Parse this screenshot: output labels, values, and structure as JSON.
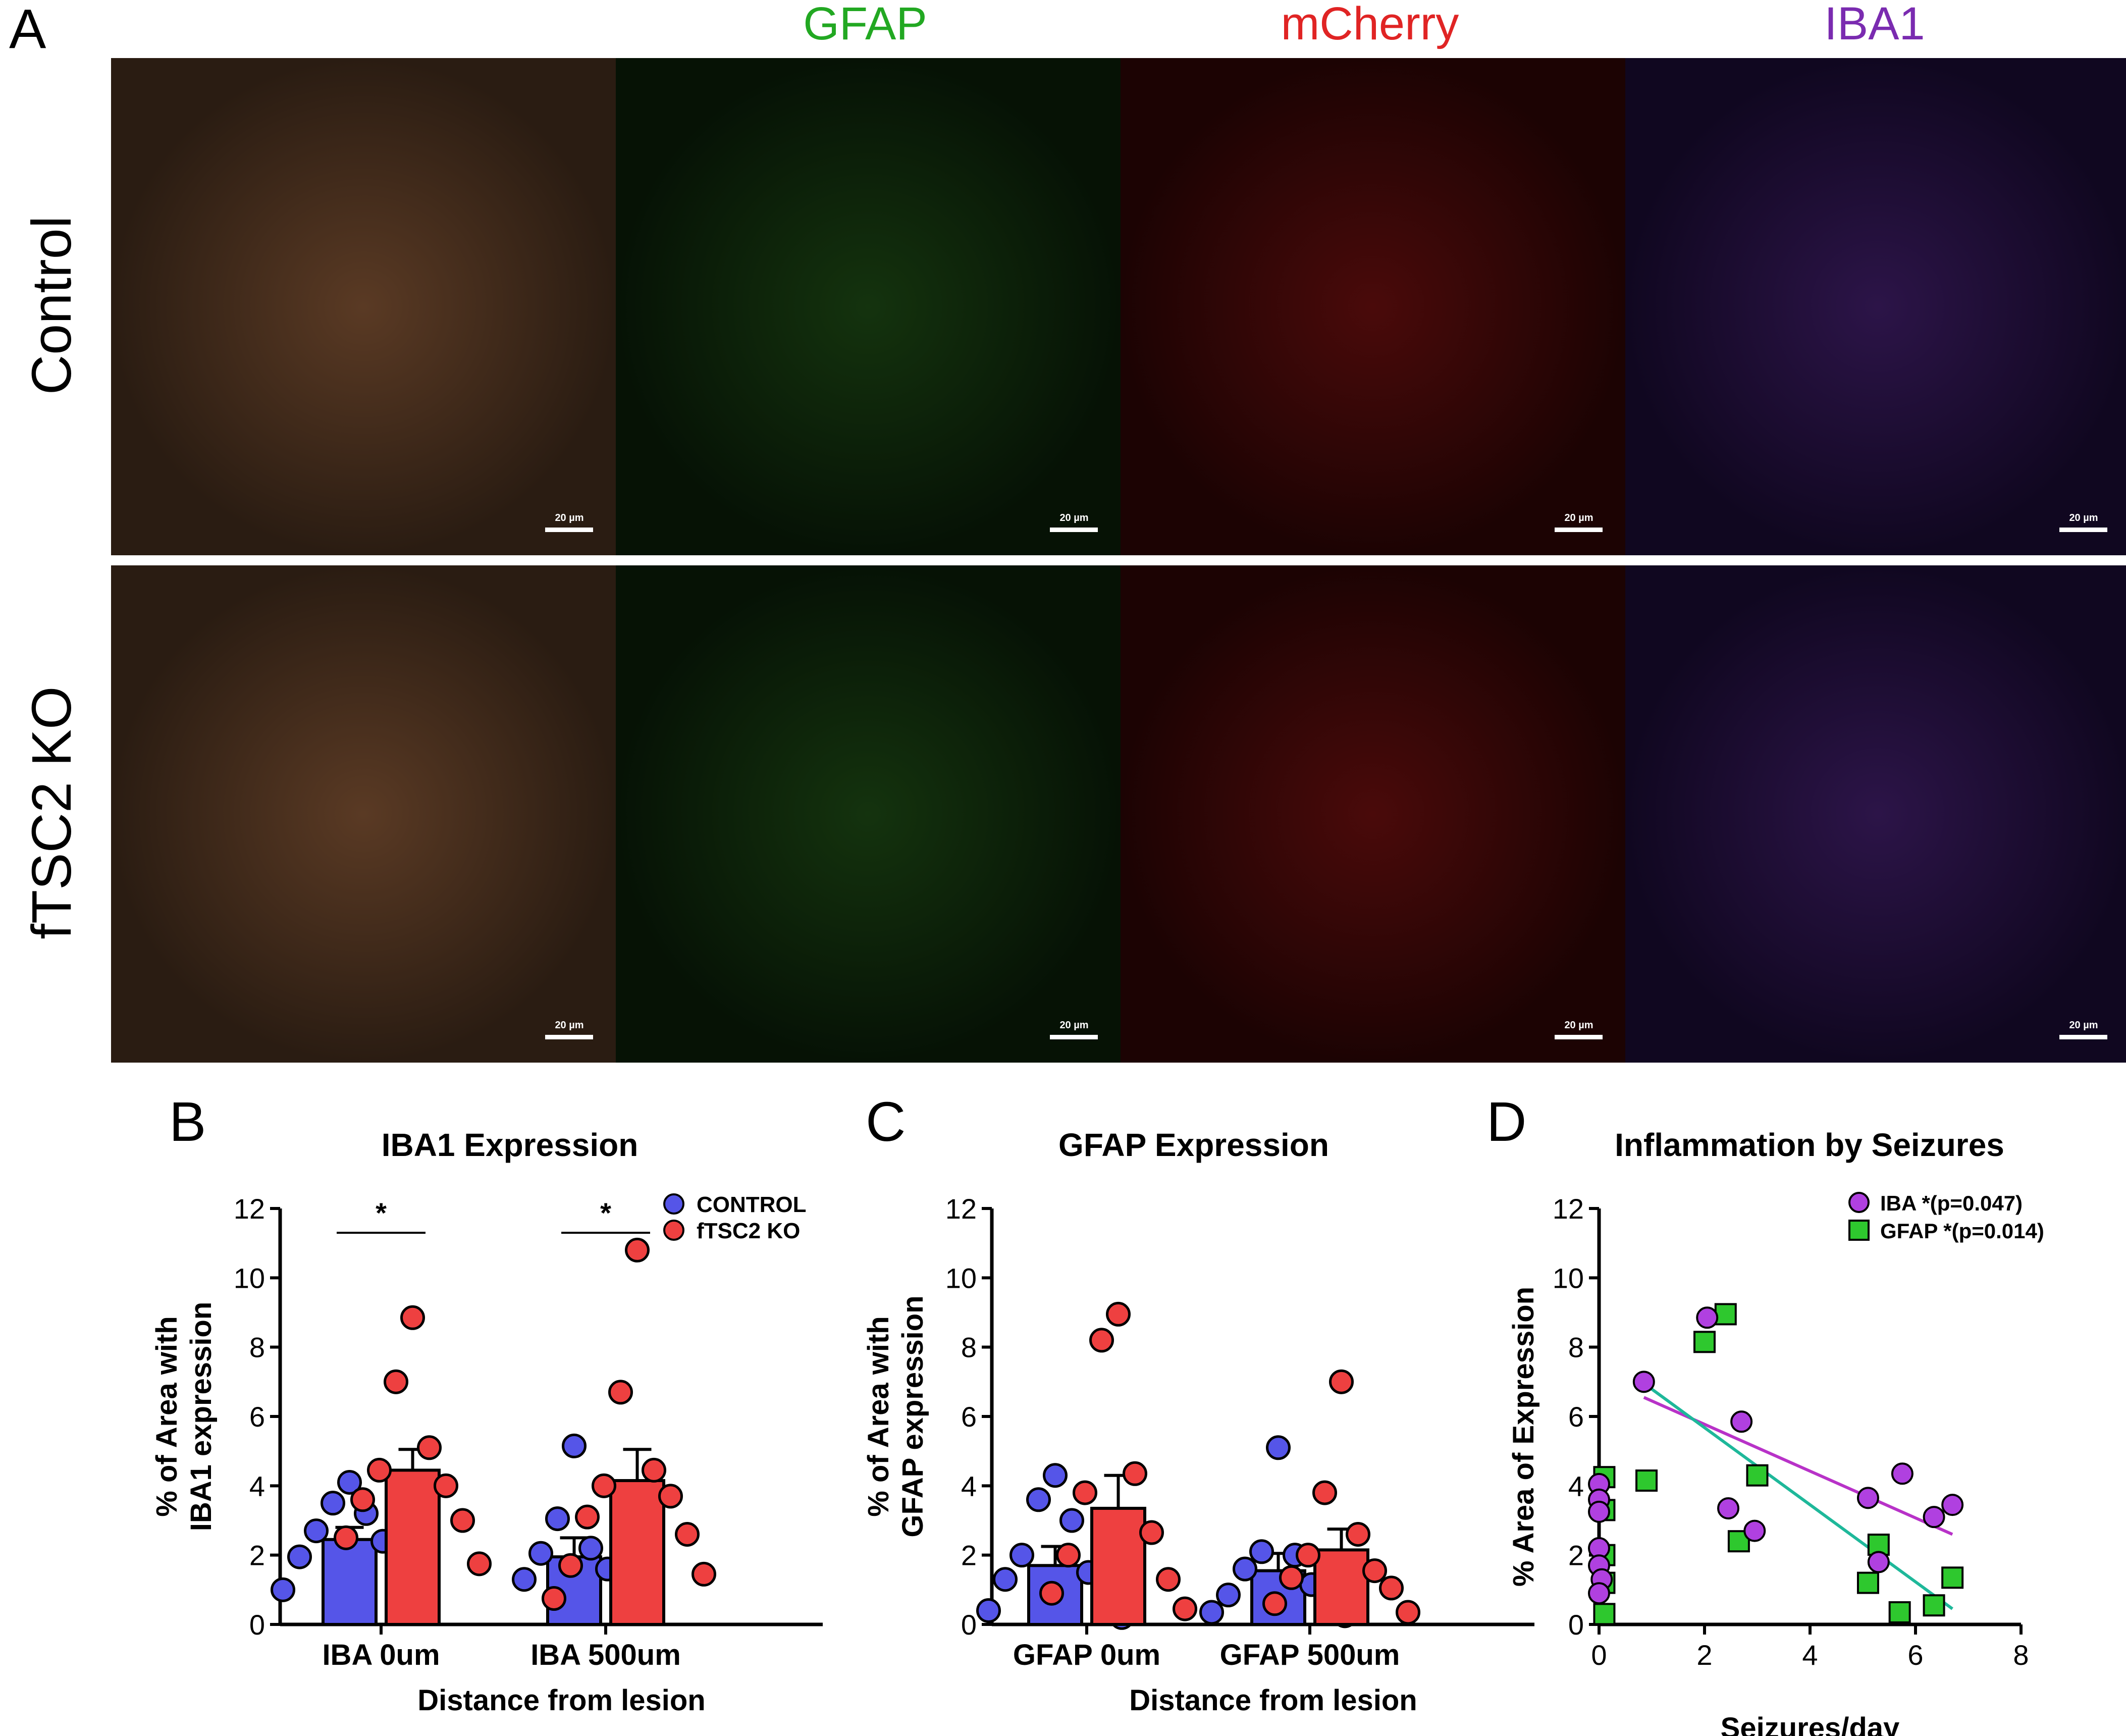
{
  "panel_a": {
    "letter": "A",
    "column_headers": [
      {
        "text": "",
        "color": "#000000"
      },
      {
        "text": "GFAP",
        "color": "#22a822"
      },
      {
        "text": "mCherry",
        "color": "#e02424"
      },
      {
        "text": "IBA1",
        "color": "#7a2bb0"
      }
    ],
    "row_labels": [
      "Control",
      "fTSC2 KO"
    ],
    "scale_bar_label": "20 µm",
    "channel_colors": {
      "merge": "#3a2a1c",
      "gfap": "#0c1f0a",
      "mcherry": "#2a0606",
      "iba1": "#1a0c2a"
    }
  },
  "chart_data": [
    {
      "id": "B",
      "letter": "B",
      "type": "bar",
      "title": "IBA1 Expression",
      "xlabel": "Distance from lesion",
      "ylabel": [
        "% of Area with",
        "IBA1 expression"
      ],
      "ylim": [
        0,
        12
      ],
      "yticks": [
        0,
        2,
        4,
        6,
        8,
        10,
        12
      ],
      "categories": [
        "IBA 0um",
        "IBA 500um"
      ],
      "legend": {
        "position": "top-right",
        "entries": [
          "CONTROL",
          "fTSC2 KO"
        ]
      },
      "series": [
        {
          "name": "CONTROL",
          "color": "#5555e8",
          "values": [
            2.45,
            1.95
          ],
          "sem": [
            0.35,
            0.55
          ],
          "points": [
            [
              4.1,
              3.5,
              3.2,
              2.7,
              2.4,
              1.95,
              1.75,
              1.0
            ],
            [
              5.15,
              3.05,
              2.2,
              2.05,
              1.6,
              1.3,
              1.0
            ]
          ]
        },
        {
          "name": "fTSC2 KO",
          "color": "#ee4040",
          "values": [
            4.45,
            4.15
          ],
          "sem": [
            0.6,
            0.9
          ],
          "points": [
            [
              8.85,
              7.0,
              5.1,
              4.45,
              4.0,
              3.6,
              3.0,
              2.5,
              1.75
            ],
            [
              10.8,
              6.7,
              4.45,
              4.0,
              3.7,
              3.1,
              2.6,
              1.7,
              1.45,
              0.75
            ]
          ]
        }
      ],
      "significance": [
        {
          "category": "IBA 0um",
          "label": "*"
        },
        {
          "category": "IBA 500um",
          "label": "*"
        }
      ]
    },
    {
      "id": "C",
      "letter": "C",
      "type": "bar",
      "title": "GFAP Expression",
      "xlabel": "Distance from lesion",
      "ylabel": [
        "% of Area with",
        "GFAP expression"
      ],
      "ylim": [
        0,
        12
      ],
      "yticks": [
        0,
        2,
        4,
        6,
        8,
        10,
        12
      ],
      "categories": [
        "GFAP 0um",
        "GFAP 500um"
      ],
      "series": [
        {
          "name": "CONTROL",
          "color": "#5555e8",
          "values": [
            1.7,
            1.55
          ],
          "sem": [
            0.55,
            0.5
          ],
          "points": [
            [
              4.3,
              3.6,
              3.0,
              2.0,
              1.5,
              1.3,
              0.85,
              0.4,
              0.2
            ],
            [
              5.1,
              2.1,
              2.0,
              1.6,
              1.15,
              0.85,
              0.55,
              0.35,
              0.25
            ]
          ]
        },
        {
          "name": "fTSC2 KO",
          "color": "#ee4040",
          "values": [
            3.35,
            2.15
          ],
          "sem": [
            0.95,
            0.6
          ],
          "points": [
            [
              8.95,
              8.2,
              4.35,
              3.8,
              2.65,
              2.0,
              1.3,
              0.9,
              0.45
            ],
            [
              7.0,
              3.8,
              2.6,
              2.0,
              1.55,
              1.35,
              1.05,
              0.6,
              0.35
            ]
          ]
        }
      ]
    },
    {
      "id": "D",
      "letter": "D",
      "type": "scatter",
      "title": "Inflammation by Seizures",
      "xlabel": "Seizures/day",
      "ylabel": [
        "% Area of Expression"
      ],
      "xlim": [
        0,
        8
      ],
      "ylim": [
        0,
        12
      ],
      "xticks": [
        0,
        2,
        4,
        6,
        8
      ],
      "yticks": [
        0,
        2,
        4,
        6,
        8,
        10,
        12
      ],
      "legend": {
        "position": "top-right",
        "entries": [
          "IBA    *(p=0.047)",
          "GFAP *(p=0.014)"
        ]
      },
      "series": [
        {
          "name": "IBA",
          "marker": "circle",
          "color": "#b040e0",
          "line_color": "#b832c8",
          "x": [
            0.0,
            0.0,
            0.0,
            0.0,
            0.0,
            0.05,
            0.0,
            0.85,
            2.05,
            2.7,
            2.45,
            2.95,
            5.1,
            5.3,
            5.75,
            6.35,
            6.7
          ],
          "y": [
            4.05,
            3.6,
            3.25,
            2.2,
            1.7,
            1.3,
            0.9,
            7.0,
            8.85,
            5.85,
            3.35,
            2.7,
            3.65,
            1.8,
            4.35,
            3.1,
            3.45
          ],
          "fit": {
            "x": [
              0.85,
              6.7
            ],
            "y": [
              6.55,
              2.6
            ]
          }
        },
        {
          "name": "GFAP",
          "marker": "square",
          "color": "#2ec82e",
          "line_color": "#1eb89a",
          "x": [
            0.1,
            0.1,
            0.1,
            0.1,
            0.1,
            0.9,
            2.0,
            2.4,
            2.65,
            3.0,
            5.1,
            5.3,
            5.7,
            6.35,
            6.7
          ],
          "y": [
            4.25,
            3.3,
            2.0,
            1.2,
            0.3,
            4.15,
            8.15,
            8.95,
            2.4,
            4.3,
            1.2,
            2.3,
            0.35,
            0.55,
            1.35
          ],
          "fit": {
            "x": [
              0.9,
              6.7
            ],
            "y": [
              6.9,
              0.45
            ]
          }
        }
      ]
    }
  ]
}
